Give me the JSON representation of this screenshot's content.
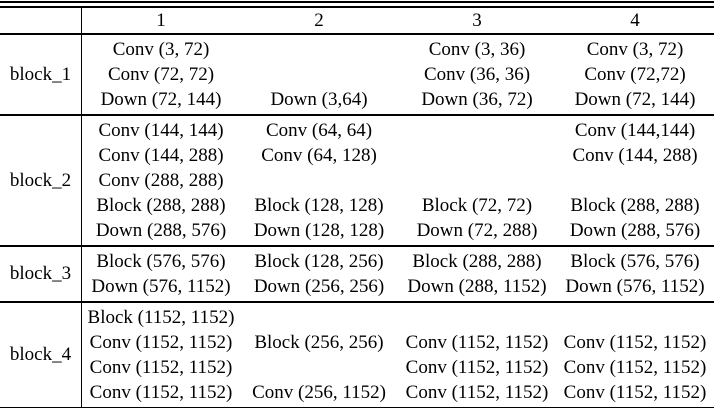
{
  "table": {
    "corner": "",
    "col_headers": [
      "1",
      "2",
      "3",
      "4"
    ],
    "blocks": [
      {
        "label": "block_1",
        "cols": [
          [
            "Conv (3, 72)",
            "Conv (72, 72)",
            "Down (72, 144)"
          ],
          [
            "",
            "",
            "Down (3,64)"
          ],
          [
            "Conv (3, 36)",
            "Conv (36, 36)",
            "Down (36, 72)"
          ],
          [
            "Conv (3, 72)",
            "Conv (72,72)",
            "Down (72, 144)"
          ]
        ]
      },
      {
        "label": "block_2",
        "cols": [
          [
            "Conv (144, 144)",
            "Conv (144, 288)",
            "Conv (288, 288)",
            "Block (288, 288)",
            "Down (288, 576)"
          ],
          [
            "Conv (64, 64)",
            "Conv (64, 128)",
            "",
            "Block (128, 128)",
            "Down (128, 128)"
          ],
          [
            "",
            "",
            "",
            "Block (72, 72)",
            "Down (72, 288)"
          ],
          [
            "Conv (144,144)",
            "Conv (144, 288)",
            "",
            "Block (288, 288)",
            "Down (288, 576)"
          ]
        ]
      },
      {
        "label": "block_3",
        "cols": [
          [
            "Block (576, 576)",
            "Down (576, 1152)"
          ],
          [
            "Block (128, 256)",
            "Down (256, 256)"
          ],
          [
            "Block (288, 288)",
            "Down (288, 1152)"
          ],
          [
            "Block (576, 576)",
            "Down (576, 1152)"
          ]
        ]
      },
      {
        "label": "block_4",
        "cols": [
          [
            "Block (1152, 1152)",
            "Conv (1152, 1152)",
            "Conv (1152, 1152)",
            "Conv (1152, 1152)"
          ],
          [
            "",
            "Block (256, 256)",
            "",
            "Conv (256, 1152)"
          ],
          [
            "",
            "Conv (1152, 1152)",
            "Conv (1152, 1152)",
            "Conv (1152, 1152)"
          ],
          [
            "",
            "Conv (1152, 1152)",
            "Conv (1152, 1152)",
            "Conv (1152, 1152)"
          ]
        ]
      }
    ]
  }
}
